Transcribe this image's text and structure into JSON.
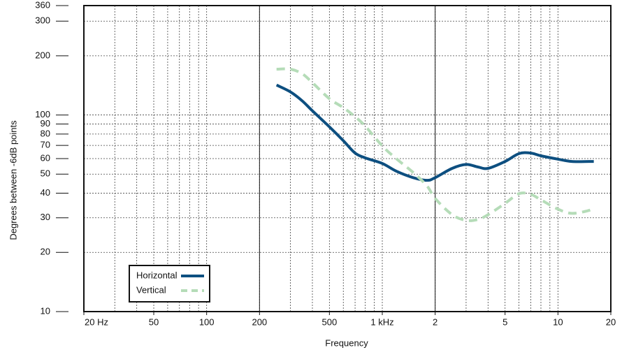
{
  "chart_data": {
    "type": "line",
    "x_label": "Frequency",
    "y_label": "Degrees between -6dB points",
    "log_x": true,
    "log_y": true,
    "grid": true,
    "xlim": [
      20,
      20000
    ],
    "ylim": [
      10,
      360
    ],
    "xticks": [
      {
        "value": 20,
        "label": "20 Hz"
      },
      50,
      100,
      200,
      500,
      {
        "value": 1000,
        "label": "1 kHz"
      },
      {
        "value": 2000,
        "label": "2"
      },
      {
        "value": 5000,
        "label": "5"
      },
      {
        "value": 10000,
        "label": "10"
      },
      {
        "value": 20000,
        "label": "20"
      }
    ],
    "solid_xlines": [
      200,
      2000
    ],
    "yticks": [
      10,
      20,
      30,
      40,
      50,
      60,
      70,
      80,
      90,
      100,
      200,
      300,
      360
    ],
    "legend": "bottom-left",
    "x": [
      250,
      300,
      350,
      400,
      500,
      600,
      700,
      800,
      1000,
      1200,
      1500,
      1800,
      2000,
      2500,
      3000,
      3500,
      4000,
      5000,
      6000,
      7000,
      8000,
      10000,
      12000,
      15000,
      16000
    ],
    "series": [
      {
        "name": "Horizontal",
        "color": "#0d4f80",
        "dashed": false,
        "values": [
          142,
          131,
          118,
          105,
          87,
          74,
          64,
          60.5,
          56.7,
          51.8,
          48,
          46.5,
          48,
          53.5,
          56,
          54.4,
          53.5,
          58,
          63.6,
          64,
          62,
          59.6,
          58,
          58,
          58
        ]
      },
      {
        "name": "Vertical",
        "color": "#b5dcb8",
        "dashed": true,
        "values": [
          171,
          171,
          162,
          146,
          121,
          109,
          98,
          87.7,
          69.6,
          60,
          51,
          43.5,
          37.6,
          31.1,
          29.1,
          29.4,
          31.1,
          35.5,
          39.8,
          39.5,
          37,
          33.2,
          31.6,
          32.7,
          33.8
        ]
      }
    ]
  }
}
